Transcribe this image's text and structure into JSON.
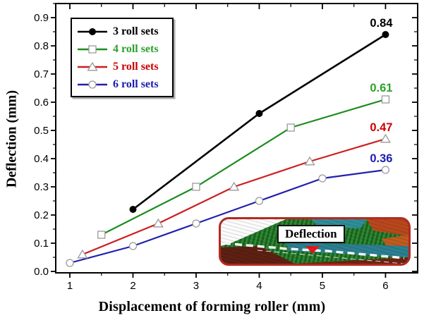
{
  "chart_data": {
    "type": "line",
    "title": "",
    "xlabel": "Displacement of forming roller (mm)",
    "ylabel": "Deflection (mm)",
    "xlim": [
      0.7765,
      6.509
    ],
    "ylim": [
      -0.005,
      0.95
    ],
    "x_ticks": [
      1,
      2,
      3,
      4,
      5,
      6
    ],
    "x_minor_ticks": [
      1.5,
      2.5,
      3.5,
      4.5,
      5.5
    ],
    "y_ticks": [
      0.0,
      0.1,
      0.2,
      0.3,
      0.4,
      0.5,
      0.6,
      0.7,
      0.8,
      0.9
    ],
    "y_minor_ticks": [
      0.05,
      0.15,
      0.25,
      0.35,
      0.45,
      0.55,
      0.65,
      0.75,
      0.85,
      0.95
    ],
    "grid": false,
    "legend_position": "top-left",
    "axis_color": "#000000",
    "marker_outline": "#9a9a9a",
    "series": [
      {
        "name": "3 roll sets",
        "color": "#000000",
        "label_color": "#000000",
        "marker": "circle-filled",
        "x": [
          2,
          4,
          6
        ],
        "y": [
          0.22,
          0.56,
          0.84
        ],
        "end_label": "0.84"
      },
      {
        "name": "4 roll sets",
        "color": "#1e8c1e",
        "label_color": "#2da12d",
        "marker": "square-open",
        "x": [
          1.5,
          3,
          4.5,
          6
        ],
        "y": [
          0.13,
          0.3,
          0.51,
          0.61
        ],
        "end_label": "0.61"
      },
      {
        "name": "5 roll sets",
        "color": "#cd1f1f",
        "label_color": "#cc0000",
        "marker": "triangle-open",
        "x": [
          1.2,
          2.4,
          3.6,
          4.8,
          6
        ],
        "y": [
          0.06,
          0.17,
          0.3,
          0.39,
          0.47
        ],
        "end_label": "0.47"
      },
      {
        "name": "6 roll sets",
        "color": "#2121ac",
        "label_color": "#1c1cb0",
        "marker": "circle-open",
        "x": [
          1,
          2,
          3,
          4,
          5,
          6
        ],
        "y": [
          0.03,
          0.09,
          0.17,
          0.25,
          0.33,
          0.36
        ],
        "end_label": "0.36"
      }
    ]
  },
  "inset": {
    "label": "Deflection"
  }
}
